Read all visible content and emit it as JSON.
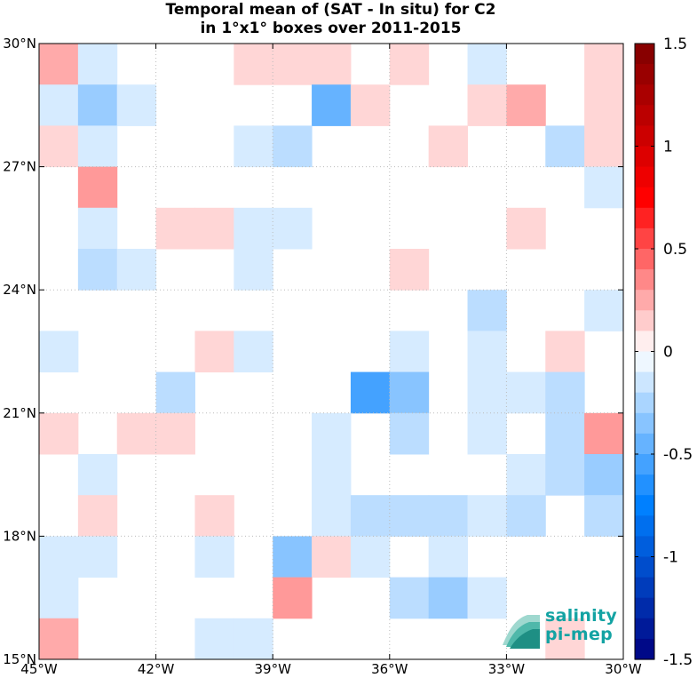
{
  "chart_data": {
    "type": "heatmap",
    "title": "Temporal mean of (SAT - In situ) for C2",
    "subtitle": "in 1°x1° boxes over 2011-2015",
    "x_range": [
      -45,
      -30
    ],
    "y_range": [
      15,
      30
    ],
    "x_ticks": [
      -45,
      -42,
      -39,
      -36,
      -33,
      -30
    ],
    "x_tick_labels": [
      "45°W",
      "42°W",
      "39°W",
      "36°W",
      "33°W",
      "30°W"
    ],
    "y_ticks": [
      15,
      18,
      21,
      24,
      27,
      30
    ],
    "y_tick_labels": [
      "15°N",
      "18°N",
      "21°N",
      "24°N",
      "27°N",
      "30°N"
    ],
    "grid": true,
    "colorbar": {
      "range": [
        -1.5,
        1.5
      ],
      "ticks": [
        1.5,
        1,
        0.5,
        0,
        -0.5,
        -1,
        -1.5
      ],
      "tick_labels": [
        "1.5",
        "1",
        "0.5",
        "0",
        "-0.5",
        "-1",
        "-1.5"
      ],
      "colormap": "blue-white-red",
      "levels": 30
    },
    "cells": [
      {
        "lon": -45,
        "lat": 29,
        "value": 0.25
      },
      {
        "lon": -44,
        "lat": 29,
        "value": -0.12
      },
      {
        "lon": -40,
        "lat": 29,
        "value": 0.12
      },
      {
        "lon": -39,
        "lat": 29,
        "value": 0.12
      },
      {
        "lon": -38,
        "lat": 29,
        "value": 0.12
      },
      {
        "lon": -36,
        "lat": 29,
        "value": 0.12
      },
      {
        "lon": -34,
        "lat": 29,
        "value": -0.12
      },
      {
        "lon": -31,
        "lat": 29,
        "value": 0.12
      },
      {
        "lon": -45,
        "lat": 28,
        "value": -0.12
      },
      {
        "lon": -44,
        "lat": 28,
        "value": -0.3
      },
      {
        "lon": -43,
        "lat": 28,
        "value": -0.12
      },
      {
        "lon": -38,
        "lat": 28,
        "value": -0.45
      },
      {
        "lon": -37,
        "lat": 28,
        "value": 0.12
      },
      {
        "lon": -34,
        "lat": 28,
        "value": 0.12
      },
      {
        "lon": -33,
        "lat": 28,
        "value": 0.25
      },
      {
        "lon": -31,
        "lat": 28,
        "value": 0.12
      },
      {
        "lon": -45,
        "lat": 27,
        "value": 0.12
      },
      {
        "lon": -44,
        "lat": 27,
        "value": -0.12
      },
      {
        "lon": -40,
        "lat": 27,
        "value": -0.12
      },
      {
        "lon": -39,
        "lat": 27,
        "value": -0.2
      },
      {
        "lon": -35,
        "lat": 27,
        "value": 0.12
      },
      {
        "lon": -32,
        "lat": 27,
        "value": -0.2
      },
      {
        "lon": -31,
        "lat": 27,
        "value": 0.12
      },
      {
        "lon": -44,
        "lat": 26,
        "value": 0.3
      },
      {
        "lon": -31,
        "lat": 26,
        "value": -0.12
      },
      {
        "lon": -44,
        "lat": 25,
        "value": -0.12
      },
      {
        "lon": -42,
        "lat": 25,
        "value": 0.12
      },
      {
        "lon": -41,
        "lat": 25,
        "value": 0.12
      },
      {
        "lon": -40,
        "lat": 25,
        "value": -0.12
      },
      {
        "lon": -39,
        "lat": 25,
        "value": -0.12
      },
      {
        "lon": -33,
        "lat": 25,
        "value": 0.12
      },
      {
        "lon": -44,
        "lat": 24,
        "value": -0.2
      },
      {
        "lon": -43,
        "lat": 24,
        "value": -0.12
      },
      {
        "lon": -40,
        "lat": 24,
        "value": -0.12
      },
      {
        "lon": -36,
        "lat": 24,
        "value": 0.12
      },
      {
        "lon": -34,
        "lat": 23,
        "value": -0.2
      },
      {
        "lon": -31,
        "lat": 23,
        "value": -0.12
      },
      {
        "lon": -45,
        "lat": 22,
        "value": -0.12
      },
      {
        "lon": -41,
        "lat": 22,
        "value": 0.12
      },
      {
        "lon": -40,
        "lat": 22,
        "value": -0.12
      },
      {
        "lon": -36,
        "lat": 22,
        "value": -0.12
      },
      {
        "lon": -34,
        "lat": 22,
        "value": -0.12
      },
      {
        "lon": -32,
        "lat": 22,
        "value": 0.12
      },
      {
        "lon": -42,
        "lat": 21,
        "value": -0.2
      },
      {
        "lon": -37,
        "lat": 21,
        "value": -0.55
      },
      {
        "lon": -36,
        "lat": 21,
        "value": -0.35
      },
      {
        "lon": -34,
        "lat": 21,
        "value": -0.12
      },
      {
        "lon": -33,
        "lat": 21,
        "value": -0.12
      },
      {
        "lon": -32,
        "lat": 21,
        "value": -0.2
      },
      {
        "lon": -45,
        "lat": 20,
        "value": 0.12
      },
      {
        "lon": -43,
        "lat": 20,
        "value": 0.12
      },
      {
        "lon": -42,
        "lat": 20,
        "value": 0.12
      },
      {
        "lon": -38,
        "lat": 20,
        "value": -0.12
      },
      {
        "lon": -36,
        "lat": 20,
        "value": -0.2
      },
      {
        "lon": -34,
        "lat": 20,
        "value": -0.12
      },
      {
        "lon": -32,
        "lat": 20,
        "value": -0.2
      },
      {
        "lon": -31,
        "lat": 20,
        "value": 0.3
      },
      {
        "lon": -44,
        "lat": 19,
        "value": -0.12
      },
      {
        "lon": -38,
        "lat": 19,
        "value": -0.12
      },
      {
        "lon": -33,
        "lat": 19,
        "value": -0.12
      },
      {
        "lon": -32,
        "lat": 19,
        "value": -0.2
      },
      {
        "lon": -31,
        "lat": 19,
        "value": -0.3
      },
      {
        "lon": -44,
        "lat": 18,
        "value": 0.12
      },
      {
        "lon": -41,
        "lat": 18,
        "value": 0.12
      },
      {
        "lon": -38,
        "lat": 18,
        "value": -0.12
      },
      {
        "lon": -37,
        "lat": 18,
        "value": -0.2
      },
      {
        "lon": -36,
        "lat": 18,
        "value": -0.2
      },
      {
        "lon": -35,
        "lat": 18,
        "value": -0.2
      },
      {
        "lon": -34,
        "lat": 18,
        "value": -0.12
      },
      {
        "lon": -33,
        "lat": 18,
        "value": -0.2
      },
      {
        "lon": -31,
        "lat": 18,
        "value": -0.2
      },
      {
        "lon": -45,
        "lat": 17,
        "value": -0.12
      },
      {
        "lon": -44,
        "lat": 17,
        "value": -0.12
      },
      {
        "lon": -41,
        "lat": 17,
        "value": -0.12
      },
      {
        "lon": -39,
        "lat": 17,
        "value": -0.35
      },
      {
        "lon": -38,
        "lat": 17,
        "value": 0.12
      },
      {
        "lon": -37,
        "lat": 17,
        "value": -0.12
      },
      {
        "lon": -35,
        "lat": 17,
        "value": -0.12
      },
      {
        "lon": -45,
        "lat": 16,
        "value": -0.12
      },
      {
        "lon": -39,
        "lat": 16,
        "value": 0.3
      },
      {
        "lon": -36,
        "lat": 16,
        "value": -0.2
      },
      {
        "lon": -35,
        "lat": 16,
        "value": -0.3
      },
      {
        "lon": -34,
        "lat": 16,
        "value": -0.12
      },
      {
        "lon": -45,
        "lat": 15,
        "value": 0.25
      },
      {
        "lon": -41,
        "lat": 15,
        "value": -0.12
      },
      {
        "lon": -40,
        "lat": 15,
        "value": -0.12
      },
      {
        "lon": -32,
        "lat": 15,
        "value": 0.12
      }
    ]
  },
  "logo": {
    "line1": "salinity",
    "line2": "pi-mep",
    "color": "#13a3a3"
  }
}
